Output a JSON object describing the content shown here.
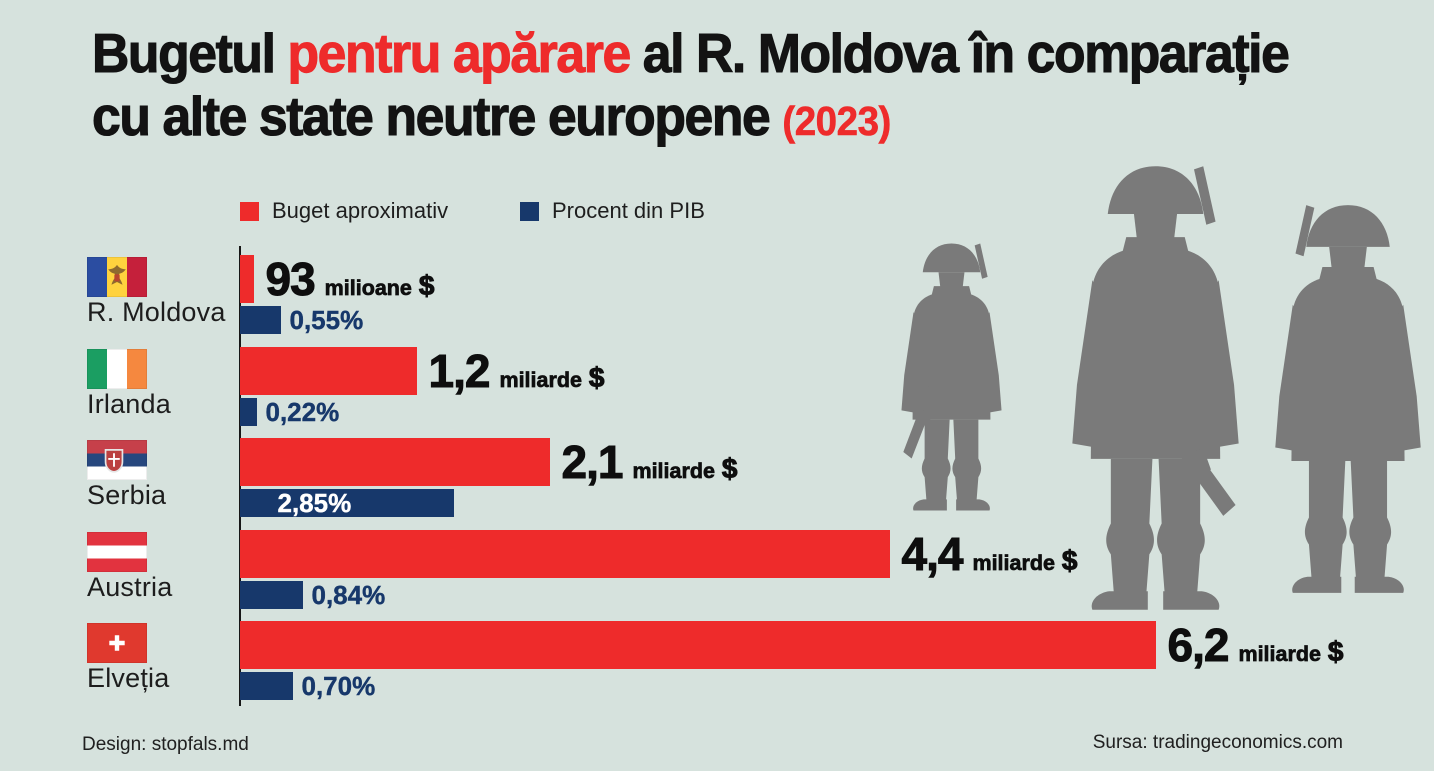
{
  "title": {
    "part1": "Bugetul ",
    "part2": "pentru apărare",
    "part3": " al R. Moldova în comparație",
    "line2": "cu alte state neutre europene ",
    "year": "(2023)"
  },
  "legend": {
    "items": [
      {
        "label": "Buget aproximativ",
        "color": "#ee2b2b"
      },
      {
        "label": "Procent din PIB",
        "color": "#17386b"
      }
    ]
  },
  "chart_data": {
    "type": "bar",
    "orientation": "horizontal",
    "title": "Bugetul pentru apărare al R. Moldova în comparație cu alte state neutre europene (2023)",
    "categories": [
      "R. Moldova",
      "Irlanda",
      "Serbia",
      "Austria",
      "Elveția"
    ],
    "series": [
      {
        "name": "Buget aproximativ",
        "color": "#ee2b2b",
        "unit": "miliarde USD",
        "values": [
          0.093,
          1.2,
          2.1,
          4.4,
          6.2
        ],
        "labels": [
          "93 milioane $",
          "1,2 miliarde $",
          "2,1 miliarde $",
          "4,4 miliarde $",
          "6,2 miliarde $"
        ]
      },
      {
        "name": "Procent din PIB",
        "color": "#17386b",
        "unit": "% din PIB",
        "values": [
          0.55,
          0.22,
          2.85,
          0.84,
          0.7
        ],
        "labels": [
          "0,55%",
          "0,22%",
          "2,85%",
          "0,84%",
          "0,70%"
        ]
      }
    ],
    "rows": [
      {
        "country": "R. Moldova",
        "flag": "moldova",
        "budget_billions": 0.093,
        "budget_number": "93",
        "budget_unit": "milioane",
        "currency": "$",
        "pct": 0.55,
        "pct_label": "0,55%",
        "pct_inside": false
      },
      {
        "country": "Irlanda",
        "flag": "irlanda",
        "budget_billions": 1.2,
        "budget_number": "1,2",
        "budget_unit": "miliarde",
        "currency": "$",
        "pct": 0.22,
        "pct_label": "0,22%",
        "pct_inside": false
      },
      {
        "country": "Serbia",
        "flag": "serbia",
        "budget_billions": 2.1,
        "budget_number": "2,1",
        "budget_unit": "miliarde",
        "currency": "$",
        "pct": 2.85,
        "pct_label": "2,85%",
        "pct_inside": true
      },
      {
        "country": "Austria",
        "flag": "austria",
        "budget_billions": 4.4,
        "budget_number": "4,4",
        "budget_unit": "miliarde",
        "currency": "$",
        "pct": 0.84,
        "pct_label": "0,84%",
        "pct_inside": false
      },
      {
        "country": "Elveția",
        "flag": "elvetia",
        "budget_billions": 6.2,
        "budget_number": "6,2",
        "budget_unit": "miliarde",
        "currency": "$",
        "pct": 0.7,
        "pct_label": "0,70%",
        "pct_inside": false
      }
    ],
    "legend_position": "top",
    "grid": false,
    "x_axis_baseline": true
  },
  "flags": {
    "moldova": {
      "dir": "v",
      "stripes": [
        "#2b4da1",
        "#ffd23e",
        "#c5203b"
      ],
      "emblem": "moldova_eagle"
    },
    "irlanda": {
      "dir": "v",
      "stripes": [
        "#1b9e62",
        "#ffffff",
        "#f5883f"
      ],
      "emblem": null
    },
    "serbia": {
      "dir": "h",
      "stripes": [
        "#c6404a",
        "#27477e",
        "#ffffff"
      ],
      "emblem": "serbia_shield"
    },
    "austria": {
      "dir": "h",
      "stripes": [
        "#e2333f",
        "#ffffff",
        "#e2333f"
      ],
      "emblem": null
    },
    "elvetia": {
      "dir": "solid",
      "stripes": [
        "#e0392e"
      ],
      "emblem": "swiss_cross"
    }
  },
  "footer": {
    "design": "Design: stopfals.md",
    "source": "Sursa: tradingeconomics.com"
  },
  "colors": {
    "background": "#d6e2dd",
    "budget_red": "#ee2b2b",
    "pib_navy": "#17386b",
    "soldier_gray": "#7a7a7a",
    "text_black": "#131313"
  }
}
